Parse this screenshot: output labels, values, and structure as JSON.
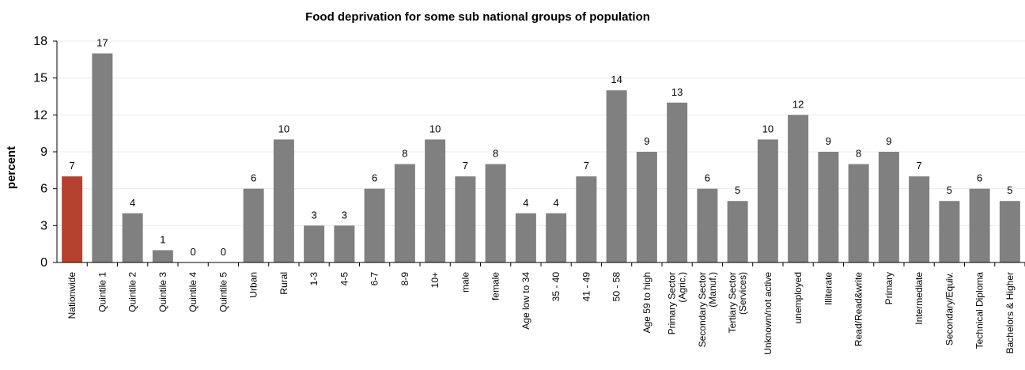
{
  "chart_data": {
    "type": "bar",
    "title": "Food deprivation for some sub national groups of population",
    "ylabel": "percent",
    "xlabel": "",
    "ylim": [
      0,
      18
    ],
    "yticks": [
      0,
      3,
      6,
      9,
      12,
      15,
      18
    ],
    "grid": true,
    "colors": {
      "highlight": "#b5412f",
      "default": "#808080"
    },
    "categories": [
      "Nationwide",
      "Quintile 1",
      "Quintile 2",
      "Quintile 3",
      "Quintile 4",
      "Quintile 5",
      "Urban",
      "Rural",
      "1-3",
      "4-5",
      "6-7",
      "8-9",
      "10+",
      "male",
      "female",
      "Age low to 34",
      "35 - 40",
      "41 - 49",
      "50 - 58",
      "Age 59 to high",
      "Primary Sector (Agric.)",
      "Secondary Sector (Manuf.)",
      "Tertiary Sector (Services)",
      "Unknown/not active",
      "unemployed",
      "Illiterate",
      "Read/Read&write",
      "Primary",
      "Intermediate",
      "Secondary/Equiv.",
      "Technical Diploma",
      "Bachelors & Higher"
    ],
    "category_lines": [
      [
        "Nationwide"
      ],
      [
        "Quintile 1"
      ],
      [
        "Quintile 2"
      ],
      [
        "Quintile 3"
      ],
      [
        "Quintile 4"
      ],
      [
        "Quintile 5"
      ],
      [
        "Urban"
      ],
      [
        "Rural"
      ],
      [
        "1-3"
      ],
      [
        "4-5"
      ],
      [
        "6-7"
      ],
      [
        "8-9"
      ],
      [
        "10+"
      ],
      [
        "male"
      ],
      [
        "female"
      ],
      [
        "Age low to 34"
      ],
      [
        "35 - 40"
      ],
      [
        "41 - 49"
      ],
      [
        "50 - 58"
      ],
      [
        "Age 59 to high"
      ],
      [
        "Primary Sector",
        "(Agric.)"
      ],
      [
        "Secondary Sector",
        "(Manuf.)"
      ],
      [
        "Tertiary Sector",
        "(Services)"
      ],
      [
        "Unknown/not active"
      ],
      [
        "unemployed"
      ],
      [
        "Illiterate"
      ],
      [
        "Read/Read&write"
      ],
      [
        "Primary"
      ],
      [
        "Intermediate"
      ],
      [
        "Secondary/Equiv."
      ],
      [
        "Technical Diploma"
      ],
      [
        "Bachelors & Higher"
      ]
    ],
    "values": [
      7,
      17,
      4,
      1,
      0,
      0,
      6,
      10,
      3,
      3,
      6,
      8,
      10,
      7,
      8,
      4,
      4,
      7,
      14,
      9,
      13,
      6,
      5,
      10,
      12,
      9,
      8,
      9,
      7,
      5,
      6,
      5
    ],
    "highlight_index": 0
  }
}
